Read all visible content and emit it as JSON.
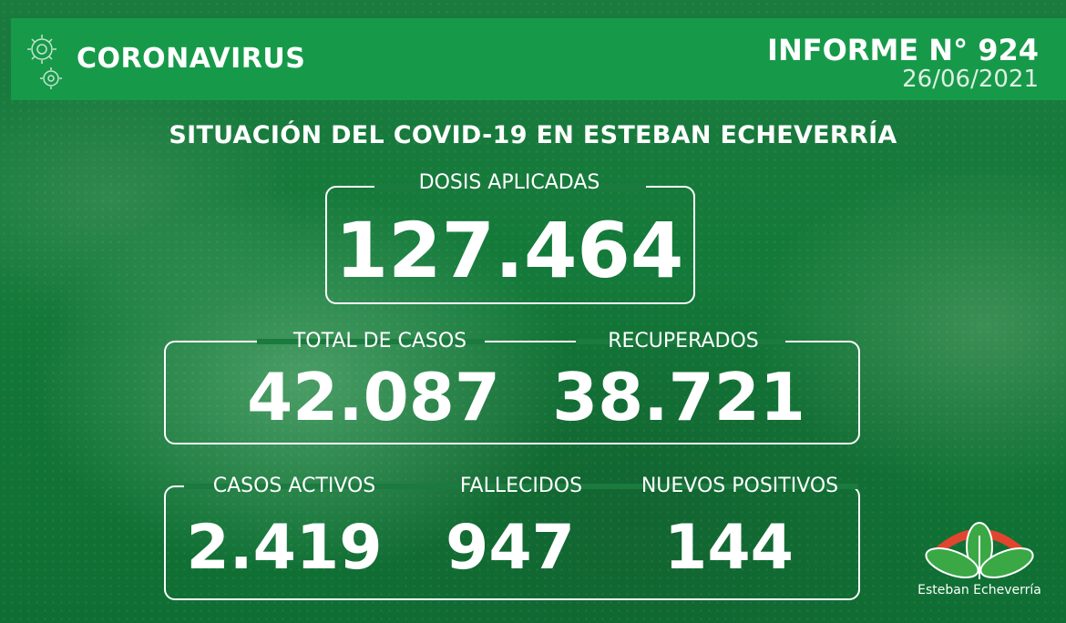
{
  "header": {
    "brand": "CORONAVIRUS",
    "report_title": "INFORME N° 924",
    "report_date": "26/06/2021"
  },
  "main_title": "SITUACIÓN DEL COVID-19 EN ESTEBAN ECHEVERRÍA",
  "stats": {
    "dosis": {
      "label": "DOSIS APLICADAS",
      "value": "127.464"
    },
    "total": {
      "label": "TOTAL DE CASOS",
      "value": "42.087"
    },
    "recuperados": {
      "label": "RECUPERADOS",
      "value": "38.721"
    },
    "activos": {
      "label": "CASOS ACTIVOS",
      "value": "2.419"
    },
    "fallecidos": {
      "label": "FALLECIDOS",
      "value": "947"
    },
    "nuevos": {
      "label": "NUEVOS POSITIVOS",
      "value": "144"
    }
  },
  "logo": {
    "text": "Esteban Echeverría",
    "icon": "municipal-leaf-logo"
  },
  "colors": {
    "header_green": "#169a4a",
    "background_green": "#147a3a",
    "logo_red": "#e2452f",
    "logo_green": "#3aa845"
  }
}
